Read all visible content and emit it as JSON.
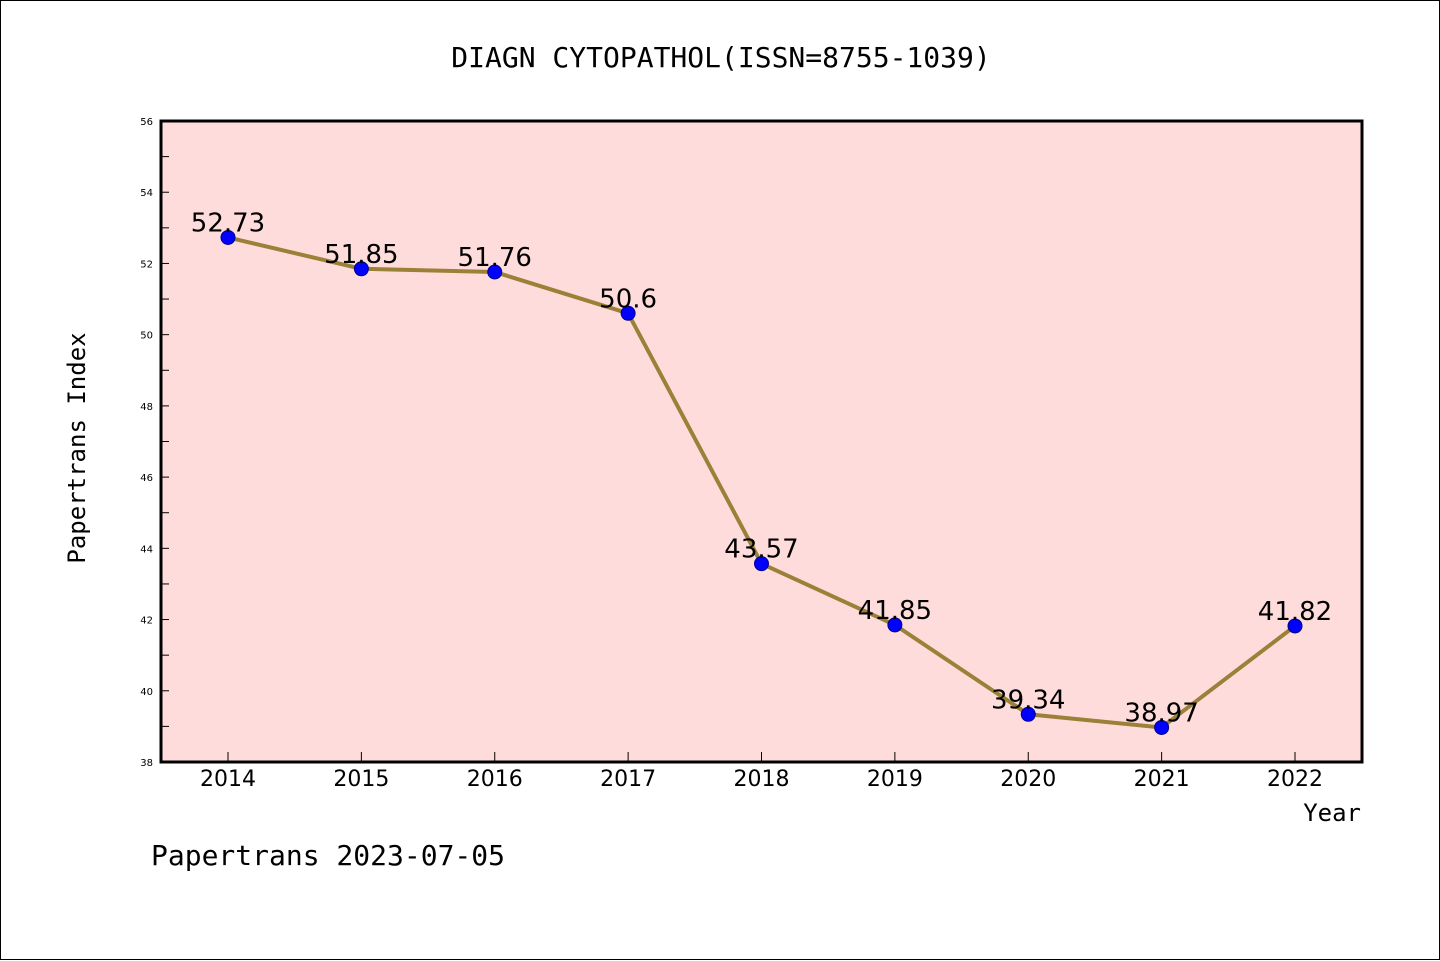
{
  "chart_data": {
    "type": "line",
    "title": "DIAGN CYTOPATHOL(ISSN=8755-1039)",
    "xlabel": "Year",
    "ylabel": "Papertrans Index",
    "categories": [
      "2014",
      "2015",
      "2016",
      "2017",
      "2018",
      "2019",
      "2020",
      "2021",
      "2022"
    ],
    "series": [
      {
        "values": [
          52.73,
          51.85,
          51.76,
          50.6,
          43.57,
          41.85,
          39.34,
          38.97,
          41.82
        ],
        "labels": [
          "52.73",
          "51.85",
          "51.76",
          "50.6",
          "43.57",
          "41.85",
          "39.34",
          "38.97",
          "41.82"
        ]
      }
    ],
    "ylim": [
      38,
      56
    ],
    "yticks": [
      "38",
      "40",
      "42",
      "44",
      "46",
      "48",
      "50",
      "52",
      "54",
      "56"
    ],
    "grid": false,
    "background_color": "#ffdcdc",
    "line_color": "#9b8038",
    "marker_color": "#0000ff",
    "footer": "Papertrans 2023-07-05"
  }
}
